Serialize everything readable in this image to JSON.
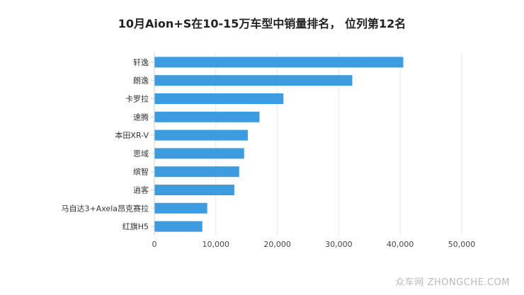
{
  "chart_data": {
    "type": "bar",
    "orientation": "horizontal",
    "title": "10月Aion+S在10-15万车型中销量排名， 位列第12名",
    "categories": [
      "轩逸",
      "朗逸",
      "卡罗拉",
      "速腾",
      "本田XR-V",
      "思域",
      "缤智",
      "逍客",
      "马自达3+Axela昂克赛拉",
      "红旗H5"
    ],
    "values": [
      40500,
      32200,
      21000,
      17100,
      15200,
      14600,
      13800,
      13000,
      8600,
      7800
    ],
    "xlim": [
      0,
      50000
    ],
    "x_ticks": [
      0,
      10000,
      20000,
      30000,
      40000,
      50000
    ],
    "x_tick_labels": [
      "0",
      "10,000",
      "20,000",
      "30,000",
      "40,000",
      "50,000"
    ],
    "xlabel": "",
    "ylabel": "",
    "grid": true,
    "legend": "none"
  },
  "colors": {
    "bar": "#3d9be0",
    "grid": "#e6e6e6",
    "axis": "#cccccc"
  },
  "watermark": "众车网 ZHONGCHE.COM"
}
